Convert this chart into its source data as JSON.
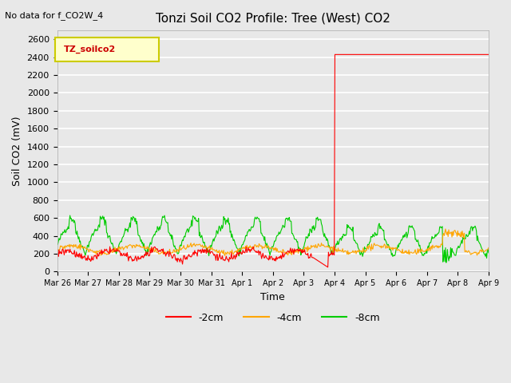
{
  "title": "Tonzi Soil CO2 Profile: Tree (West) CO2",
  "top_left_text": "No data for f_CO2W_4",
  "ylabel": "Soil CO2 (mV)",
  "xlabel": "Time",
  "legend_label": "TZ_soilco2",
  "series_labels": [
    "-2cm",
    "-4cm",
    "-8cm"
  ],
  "series_colors": [
    "#ff0000",
    "#ffa500",
    "#00cc00"
  ],
  "ylim": [
    0,
    2700
  ],
  "yticks": [
    0,
    200,
    400,
    600,
    800,
    1000,
    1200,
    1400,
    1600,
    1800,
    2000,
    2200,
    2400,
    2600
  ],
  "xtick_labels": [
    "Mar 26",
    "Mar 27",
    "Mar 28",
    "Mar 29",
    "Mar 30",
    "Mar 31",
    "Apr 1",
    "Apr 2",
    "Apr 3",
    "Apr 4",
    "Apr 5",
    "Apr 6",
    "Apr 7",
    "Apr 8",
    "Apr 9"
  ],
  "background_color": "#e8e8e8",
  "plot_bg_color": "#e8e8e8",
  "grid_color": "#ffffff",
  "legend_box_color": "#ffffcc",
  "legend_box_edge": "#cccc00"
}
